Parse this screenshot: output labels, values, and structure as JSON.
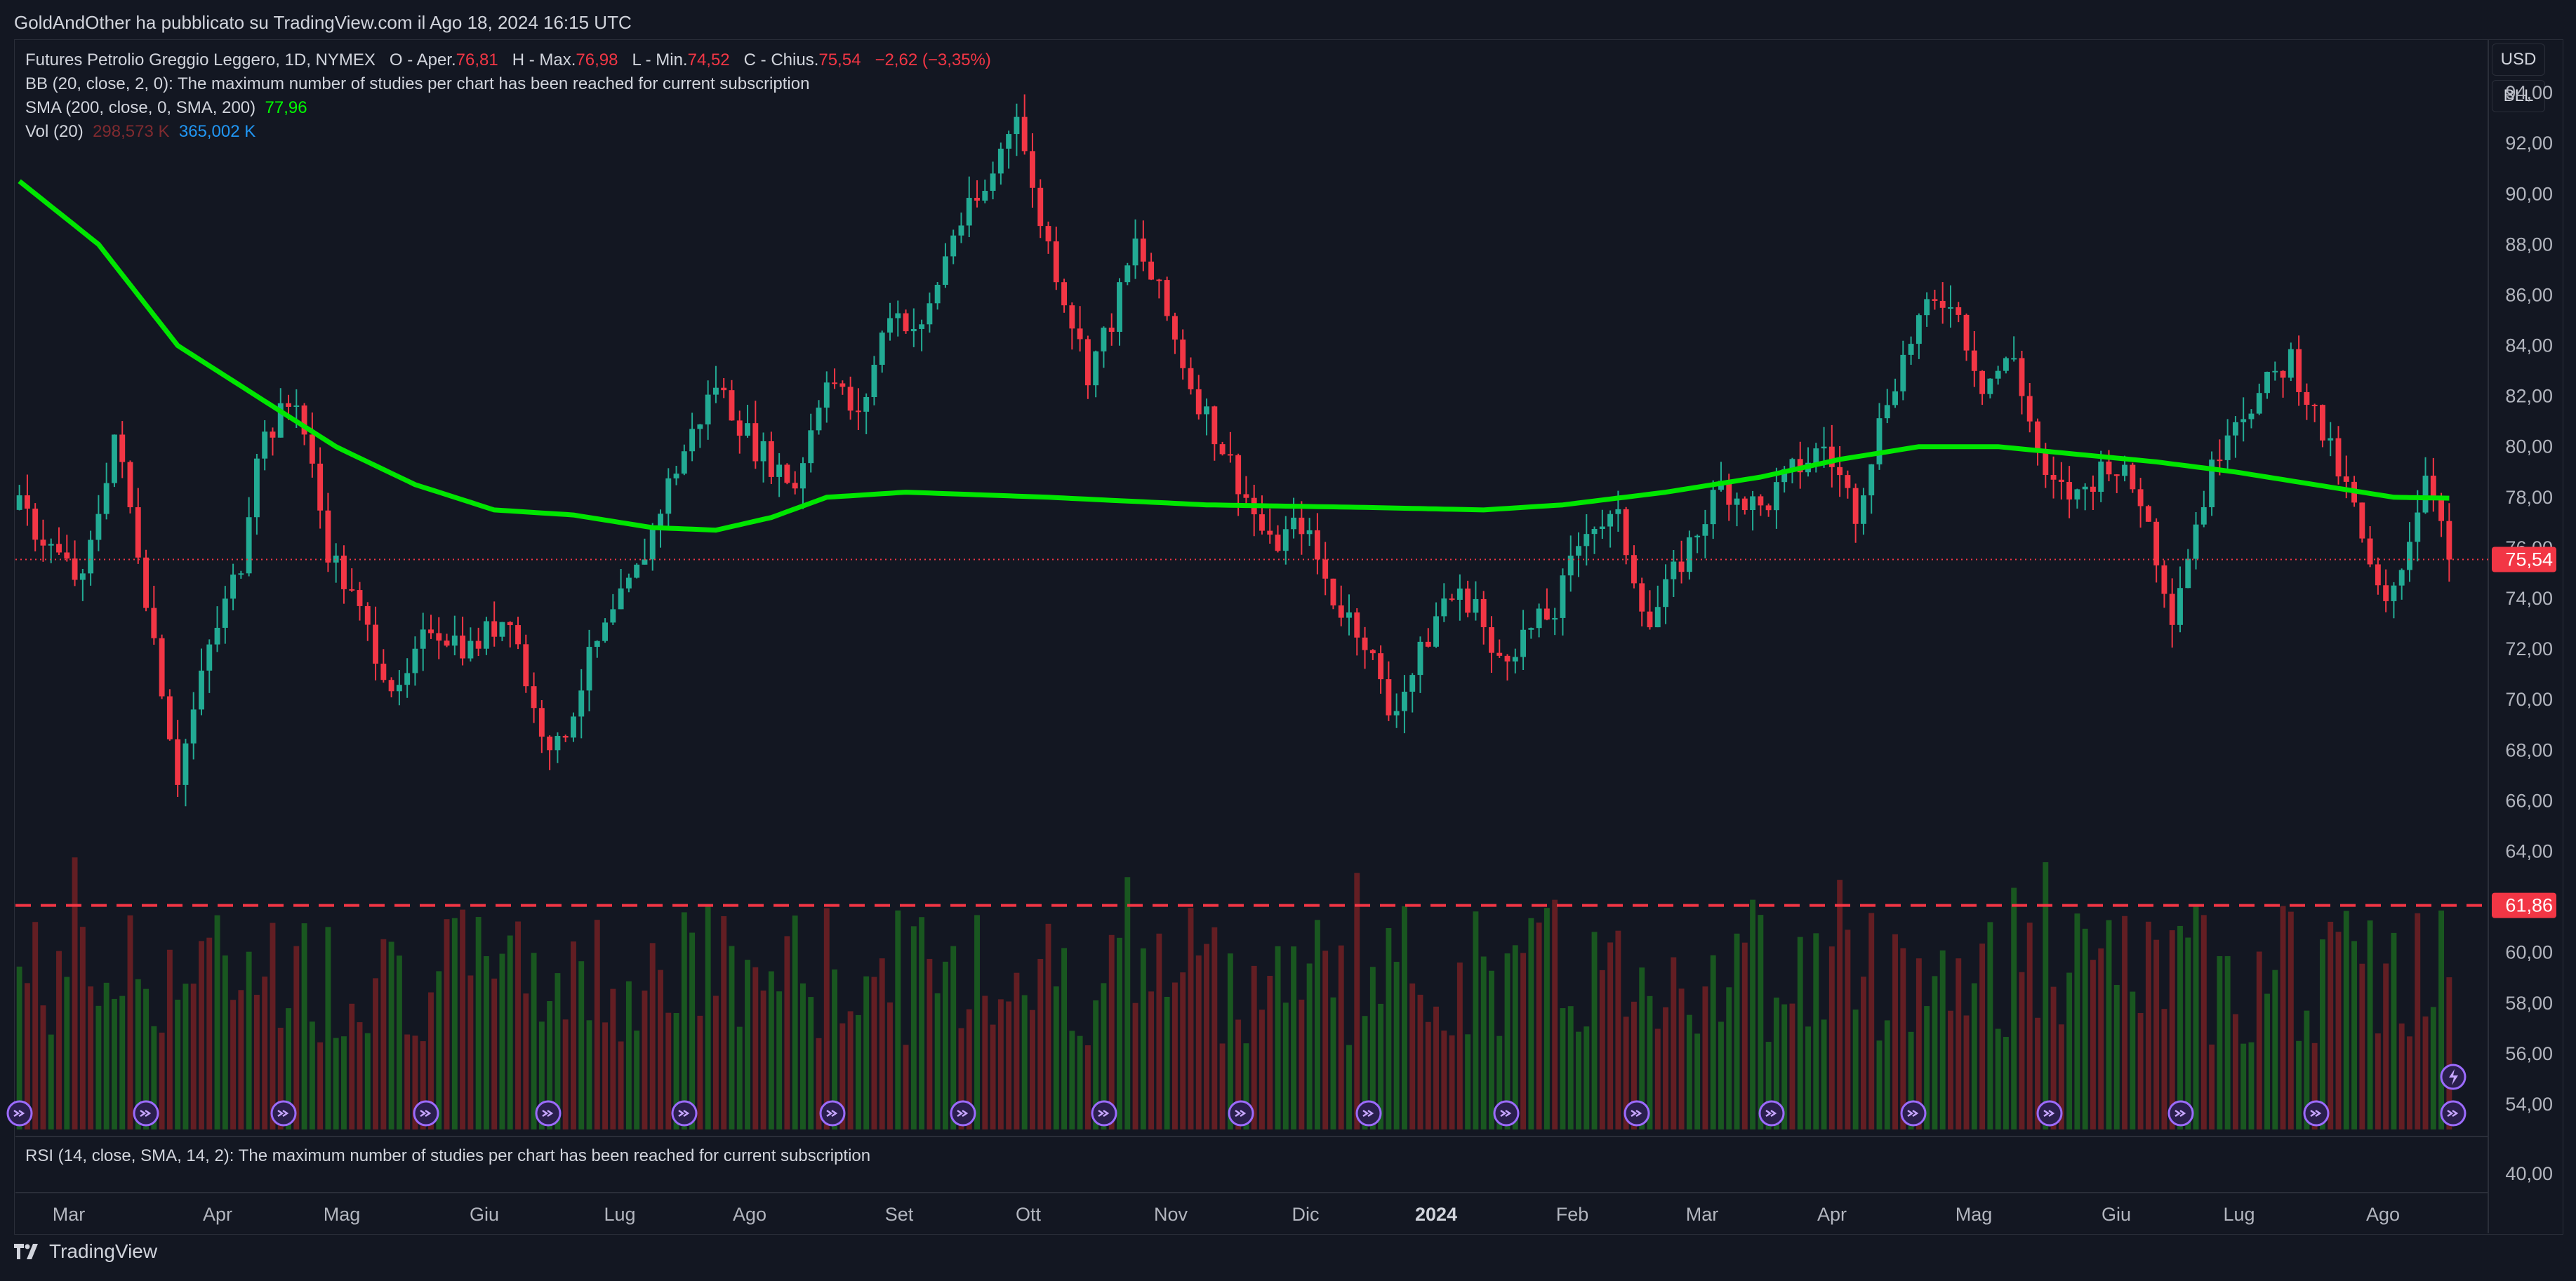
{
  "header": {
    "publisher_text": "GoldAndOther ha pubblicato su TradingView.com il Ago 18, 2024 16:15 UTC"
  },
  "legend": {
    "symbol": "Futures Petrolio Greggio Leggero, 1D, NYMEX",
    "open_label": "O - Aper.",
    "open": "76,81",
    "high_label": "H - Max.",
    "high": "76,98",
    "low_label": "L - Min.",
    "low": "74,52",
    "close_label": "C - Chius.",
    "close": "75,54",
    "change": "−2,62 (−3,35%)",
    "bb": "BB (20, close, 2, 0): The maximum number of studies per chart has been reached for current subscription",
    "sma_label": "SMA (200, close, 0, SMA, 200)",
    "sma_value": "77,96",
    "vol_label": "Vol (20)",
    "vol_value": "298,573 K",
    "vol_ma": "365,002 K",
    "rsi": "RSI (14, close, SMA, 14, 2): The maximum number of studies per chart has been reached for current subscription"
  },
  "scale_buttons": {
    "currency": "USD",
    "unit": "BLL"
  },
  "footer": {
    "brand": "TradingView"
  },
  "colors": {
    "background": "#131722",
    "up": "#22ab94",
    "down": "#f23645",
    "sma": "#00e600",
    "level_line": "#f23645"
  },
  "chart_data": {
    "type": "candlestick",
    "title": "Futures Petrolio Greggio Leggero, 1D, NYMEX",
    "x_range": [
      "2023-02-21",
      "2024-08-16"
    ],
    "ylim": [
      53,
      96
    ],
    "y_ticks": [
      "94,00",
      "92,00",
      "90,00",
      "88,00",
      "86,00",
      "84,00",
      "82,00",
      "80,00",
      "78,00",
      "76,00",
      "74,00",
      "72,00",
      "70,00",
      "68,00",
      "66,00",
      "64,00",
      "62,00",
      "60,00",
      "58,00",
      "56,00",
      "54,00"
    ],
    "x_ticks": [
      {
        "label": "Mar",
        "bold": false
      },
      {
        "label": "Apr",
        "bold": false
      },
      {
        "label": "Mag",
        "bold": false
      },
      {
        "label": "Giu",
        "bold": false
      },
      {
        "label": "Lug",
        "bold": false
      },
      {
        "label": "Ago",
        "bold": false
      },
      {
        "label": "Set",
        "bold": false
      },
      {
        "label": "Ott",
        "bold": false
      },
      {
        "label": "Nov",
        "bold": false
      },
      {
        "label": "Dic",
        "bold": false
      },
      {
        "label": "2024",
        "bold": true
      },
      {
        "label": "Feb",
        "bold": false
      },
      {
        "label": "Mar",
        "bold": false
      },
      {
        "label": "Apr",
        "bold": false
      },
      {
        "label": "Mag",
        "bold": false
      },
      {
        "label": "Giu",
        "bold": false
      },
      {
        "label": "Lug",
        "bold": false
      },
      {
        "label": "Ago",
        "bold": false
      }
    ],
    "price_path": [
      [
        0,
        77.5
      ],
      [
        8,
        74.5
      ],
      [
        12,
        80.5
      ],
      [
        15,
        76
      ],
      [
        20,
        67
      ],
      [
        24,
        72
      ],
      [
        28,
        75.5
      ],
      [
        30,
        80
      ],
      [
        35,
        82
      ],
      [
        39,
        76
      ],
      [
        45,
        72
      ],
      [
        48,
        70
      ],
      [
        52,
        73
      ],
      [
        57,
        72
      ],
      [
        62,
        73.5
      ],
      [
        65,
        69.5
      ],
      [
        68,
        68
      ],
      [
        72,
        71.5
      ],
      [
        78,
        75
      ],
      [
        82,
        78.5
      ],
      [
        88,
        82.5
      ],
      [
        93,
        80
      ],
      [
        98,
        78.5
      ],
      [
        102,
        83
      ],
      [
        106,
        81
      ],
      [
        110,
        85.5
      ],
      [
        114,
        84.5
      ],
      [
        118,
        88.5
      ],
      [
        122,
        90
      ],
      [
        126,
        93.5
      ],
      [
        128,
        90
      ],
      [
        132,
        86
      ],
      [
        135,
        83
      ],
      [
        138,
        85
      ],
      [
        141,
        88
      ],
      [
        144,
        86
      ],
      [
        148,
        82.5
      ],
      [
        152,
        80
      ],
      [
        155,
        78
      ],
      [
        158,
        76
      ],
      [
        162,
        77
      ],
      [
        166,
        74
      ],
      [
        170,
        72.5
      ],
      [
        173,
        69.5
      ],
      [
        176,
        71
      ],
      [
        180,
        74
      ],
      [
        184,
        74
      ],
      [
        186,
        71.5
      ],
      [
        190,
        72.5
      ],
      [
        194,
        73.5
      ],
      [
        198,
        77
      ],
      [
        202,
        77
      ],
      [
        206,
        73
      ],
      [
        210,
        75.5
      ],
      [
        215,
        78.5
      ],
      [
        220,
        77.5
      ],
      [
        224,
        79
      ],
      [
        228,
        80
      ],
      [
        232,
        77.5
      ],
      [
        236,
        82
      ],
      [
        240,
        85
      ],
      [
        244,
        86
      ],
      [
        248,
        82.5
      ],
      [
        252,
        83.5
      ],
      [
        256,
        78.5
      ],
      [
        260,
        78
      ],
      [
        264,
        79.5
      ],
      [
        268,
        78
      ],
      [
        272,
        73.5
      ],
      [
        275,
        77
      ],
      [
        279,
        81
      ],
      [
        283,
        82
      ],
      [
        287,
        83.5
      ],
      [
        291,
        80.5
      ],
      [
        295,
        77.5
      ],
      [
        297,
        75
      ],
      [
        299,
        73.5
      ],
      [
        302,
        76.5
      ],
      [
        304,
        79
      ],
      [
        306,
        77.5
      ],
      [
        308,
        75.54
      ]
    ],
    "sma_200": [
      [
        0,
        90.5
      ],
      [
        10,
        88
      ],
      [
        20,
        84
      ],
      [
        30,
        82
      ],
      [
        40,
        80
      ],
      [
        50,
        78.5
      ],
      [
        60,
        77.5
      ],
      [
        70,
        77.3
      ],
      [
        80,
        76.8
      ],
      [
        88,
        76.7
      ],
      [
        95,
        77.2
      ],
      [
        102,
        78
      ],
      [
        112,
        78.2
      ],
      [
        130,
        78
      ],
      [
        150,
        77.7
      ],
      [
        170,
        77.6
      ],
      [
        185,
        77.5
      ],
      [
        195,
        77.7
      ],
      [
        208,
        78.2
      ],
      [
        220,
        78.8
      ],
      [
        230,
        79.5
      ],
      [
        240,
        80
      ],
      [
        250,
        80
      ],
      [
        260,
        79.7
      ],
      [
        270,
        79.4
      ],
      [
        280,
        79
      ],
      [
        290,
        78.5
      ],
      [
        300,
        78
      ],
      [
        308,
        77.96
      ]
    ],
    "series": [
      {
        "name": "Futures Petrolio Greggio Leggero, 1D, NYMEX",
        "last": 75.54
      },
      {
        "name": "SMA (200, close, 0, SMA, 200)",
        "last": 77.96
      }
    ],
    "volume_bars": 308,
    "level_line": {
      "value": 61.86,
      "label": "61,86"
    },
    "last_price_label": "75,54",
    "rsi_axis_tick": "40,00",
    "grid": false
  }
}
